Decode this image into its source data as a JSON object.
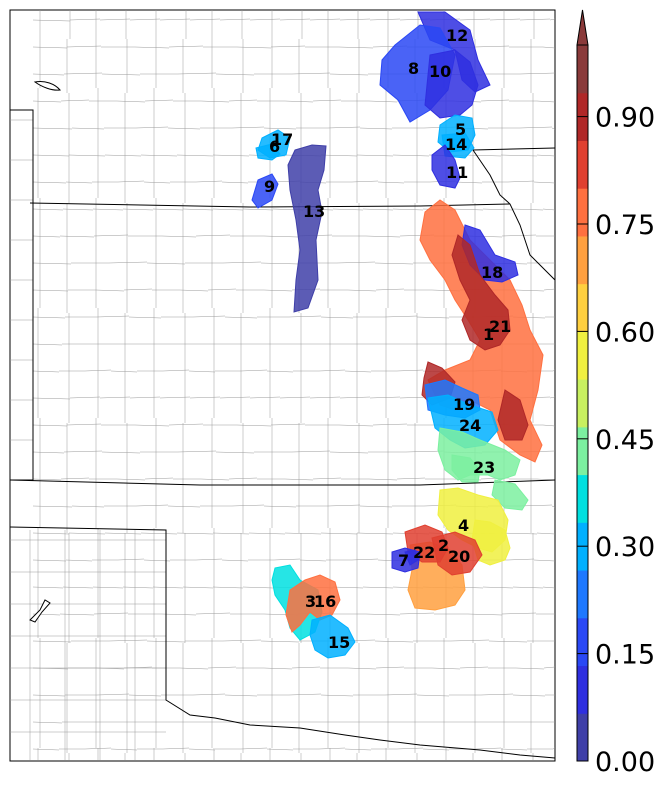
{
  "colorbar": {
    "ticks": [
      "0.00",
      "0.15",
      "0.30",
      "0.45",
      "0.60",
      "0.75",
      "0.90"
    ],
    "min": 0.0,
    "max": 1.0,
    "extend": "max",
    "colors": [
      "#3f3fa8",
      "#2f2fe0",
      "#2a48f5",
      "#1e78ff",
      "#00b0ff",
      "#00e0e0",
      "#7cf0a0",
      "#c8f060",
      "#f0f040",
      "#ffd040",
      "#ffa040",
      "#ff7040",
      "#e04030",
      "#b02828",
      "#8a3a3a"
    ]
  },
  "regions": [
    {
      "id": "12",
      "value": 0.08
    },
    {
      "id": "8",
      "value": 0.14
    },
    {
      "id": "10",
      "value": 0.12
    },
    {
      "id": "5",
      "value": 0.32
    },
    {
      "id": "14",
      "value": 0.3
    },
    {
      "id": "11",
      "value": 0.1
    },
    {
      "id": "17",
      "value": 0.3
    },
    {
      "id": "6",
      "value": 0.28
    },
    {
      "id": "9",
      "value": 0.18
    },
    {
      "id": "13",
      "value": 0.06
    },
    {
      "id": "18",
      "value": 0.08
    },
    {
      "id": "21",
      "value": 0.78
    },
    {
      "id": "1",
      "value": 0.92
    },
    {
      "id": "19",
      "value": 0.2
    },
    {
      "id": "24",
      "value": 0.3
    },
    {
      "id": "23",
      "value": 0.42
    },
    {
      "id": "4",
      "value": 0.55
    },
    {
      "id": "2",
      "value": 0.72
    },
    {
      "id": "22",
      "value": 0.8
    },
    {
      "id": "20",
      "value": 0.84
    },
    {
      "id": "7",
      "value": 0.1
    },
    {
      "id": "3",
      "value": 0.38
    },
    {
      "id": "16",
      "value": 0.78
    },
    {
      "id": "15",
      "value": 0.32
    }
  ]
}
